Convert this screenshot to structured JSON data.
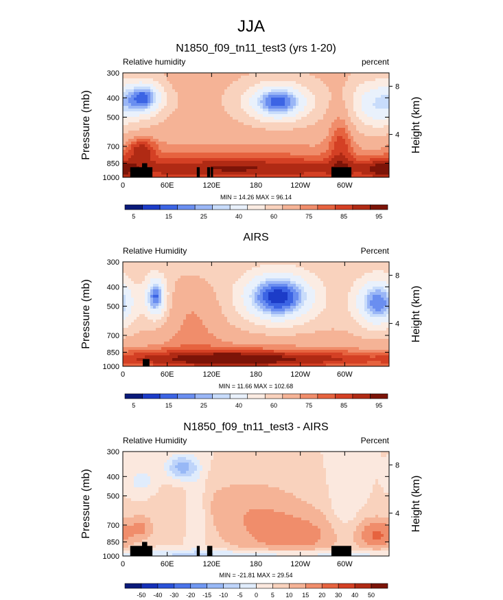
{
  "figure": {
    "title": "JJA"
  },
  "axes_common": {
    "xticks": [
      "0",
      "60E",
      "120E",
      "180",
      "120W",
      "60W"
    ],
    "xtick_lon": [
      0,
      60,
      120,
      180,
      240,
      300
    ],
    "x_range": [
      0,
      360
    ],
    "yticks": [
      "300",
      "400",
      "500",
      "700",
      "850",
      "1000"
    ],
    "ytick_values": [
      300,
      400,
      500,
      700,
      850,
      1000
    ],
    "y_range": [
      1000,
      300
    ],
    "right_ticks": [
      "8",
      "4"
    ],
    "right_tick_pressure": [
      350,
      610
    ],
    "ylabel": "Pressure (mb)",
    "ylabel_right": "Height (km)"
  },
  "colors": {
    "full": [
      "#0a1a7a",
      "#1c3cc8",
      "#3c64e4",
      "#6a8ef0",
      "#9ab6f6",
      "#c8dcfb",
      "#e9f1fc",
      "#fbece3",
      "#f9d2bd",
      "#f5b396",
      "#f08d6b",
      "#e6633f",
      "#d44024",
      "#b02a14",
      "#7c1408"
    ],
    "diff": [
      "#0a1a7a",
      "#1530b8",
      "#2a52d8",
      "#4a74ea",
      "#7098f2",
      "#98b8f6",
      "#bed4fa",
      "#e0ecfc",
      "#fbe8de",
      "#f9d2bd",
      "#f5b396",
      "#f08d6b",
      "#e6633f",
      "#d44024",
      "#b02a14",
      "#7c1408"
    ]
  },
  "chart_data": [
    {
      "type": "heatmap",
      "title": "N1850_f09_tn11_test3 (yrs 1-20)",
      "label_left": "Relative humidity",
      "label_right": "percent",
      "stats": "MIN = 14.26  MAX = 96.14",
      "palette": "full",
      "colorbar_ticks": [
        "5",
        "15",
        "25",
        "40",
        "60",
        "75",
        "85",
        "95"
      ],
      "colorbar_positions": [
        0.5,
        2.5,
        4.5,
        6.5,
        8.5,
        10.5,
        12.5,
        14.5
      ],
      "colorbar_count": 15,
      "levels": [
        5,
        10,
        15,
        20,
        25,
        30,
        40,
        50,
        60,
        70,
        75,
        80,
        85,
        90,
        95
      ],
      "base": 62,
      "features": [
        {
          "lon": 150,
          "p": 920,
          "wlon": 200,
          "wp": 60,
          "amp": 22
        },
        {
          "lon": 150,
          "p": 770,
          "wlon": 220,
          "wp": 110,
          "amp": 10
        },
        {
          "lon": 210,
          "p": 420,
          "wlon": 30,
          "wp": 90,
          "amp": -50
        },
        {
          "lon": 30,
          "p": 400,
          "wlon": 18,
          "wp": 80,
          "amp": -42
        },
        {
          "lon": 345,
          "p": 430,
          "wlon": 28,
          "wp": 120,
          "amp": -32
        },
        {
          "lon": 95,
          "p": 330,
          "wlon": 18,
          "wp": 40,
          "amp": 8
        },
        {
          "lon": 295,
          "p": 620,
          "wlon": 12,
          "wp": 200,
          "amp": 15
        },
        {
          "lon": 25,
          "p": 720,
          "wlon": 14,
          "wp": 60,
          "amp": 18
        },
        {
          "lon": 350,
          "p": 920,
          "wlon": 20,
          "wp": 60,
          "amp": 12
        }
      ],
      "land_blocks": [
        {
          "lon0": 10,
          "lon1": 40,
          "p0": 890
        },
        {
          "lon0": 26,
          "lon1": 33,
          "p0": 850
        },
        {
          "lon0": 100,
          "lon1": 104,
          "p0": 890
        },
        {
          "lon0": 114,
          "lon1": 118,
          "p0": 890
        },
        {
          "lon0": 119,
          "lon1": 122,
          "p0": 890
        },
        {
          "lon0": 282,
          "lon1": 309,
          "p0": 890
        }
      ]
    },
    {
      "type": "heatmap",
      "title": "AIRS",
      "label_left": "Relative Humidity",
      "label_right": "Percent",
      "stats": "MIN = 11.66  MAX = 102.68",
      "palette": "full",
      "colorbar_ticks": [
        "5",
        "15",
        "25",
        "40",
        "60",
        "75",
        "85",
        "95"
      ],
      "colorbar_positions": [
        0.5,
        2.5,
        4.5,
        6.5,
        8.5,
        10.5,
        12.5,
        14.5
      ],
      "colorbar_count": 15,
      "levels": [
        5,
        10,
        15,
        20,
        25,
        30,
        40,
        50,
        60,
        70,
        75,
        80,
        85,
        90,
        95
      ],
      "base": 58,
      "features": [
        {
          "lon": 160,
          "p": 930,
          "wlon": 200,
          "wp": 50,
          "amp": 28
        },
        {
          "lon": 150,
          "p": 800,
          "wlon": 200,
          "wp": 90,
          "amp": 10
        },
        {
          "lon": 210,
          "p": 450,
          "wlon": 34,
          "wp": 120,
          "amp": -52
        },
        {
          "lon": 45,
          "p": 450,
          "wlon": 10,
          "wp": 100,
          "amp": -45
        },
        {
          "lon": 345,
          "p": 480,
          "wlon": 22,
          "wp": 120,
          "amp": -42
        },
        {
          "lon": 95,
          "p": 560,
          "wlon": 30,
          "wp": 150,
          "amp": 12
        },
        {
          "lon": 150,
          "p": 930,
          "wlon": 30,
          "wp": 30,
          "amp": 10
        }
      ],
      "land_blocks": [
        {
          "lon0": 27,
          "lon1": 36,
          "p0": 920
        }
      ]
    },
    {
      "type": "heatmap",
      "title": "N1850_f09_tn11_test3 - AIRS",
      "label_left": "Relative Humidity",
      "label_right": "Percent",
      "stats": "MIN = -21.81  MAX = 29.54",
      "palette": "diff",
      "colorbar_ticks": [
        "-50",
        "-40",
        "-30",
        "-20",
        "-15",
        "-10",
        "-5",
        "0",
        "5",
        "10",
        "15",
        "20",
        "30",
        "40",
        "50"
      ],
      "colorbar_positions": [
        1,
        2,
        3,
        4,
        5,
        6,
        7,
        8,
        9,
        10,
        11,
        12,
        13,
        14,
        15
      ],
      "colorbar_count": 16,
      "levels": [
        -50,
        -40,
        -30,
        -20,
        -15,
        -10,
        -5,
        0,
        5,
        10,
        15,
        20,
        30,
        40,
        50
      ],
      "base": 5,
      "features": [
        {
          "lon": 230,
          "p": 800,
          "wlon": 60,
          "wp": 120,
          "amp": 12
        },
        {
          "lon": 170,
          "p": 550,
          "wlon": 60,
          "wp": 140,
          "amp": 8
        },
        {
          "lon": 345,
          "p": 780,
          "wlon": 20,
          "wp": 80,
          "amp": 14
        },
        {
          "lon": 80,
          "p": 360,
          "wlon": 15,
          "wp": 60,
          "amp": -18
        },
        {
          "lon": 25,
          "p": 420,
          "wlon": 12,
          "wp": 60,
          "amp": -8
        },
        {
          "lon": 180,
          "p": 985,
          "wlon": 200,
          "wp": 25,
          "amp": -12
        },
        {
          "lon": 100,
          "p": 600,
          "wlon": 10,
          "wp": 200,
          "amp": -8
        },
        {
          "lon": 300,
          "p": 600,
          "wlon": 15,
          "wp": 200,
          "amp": -6
        },
        {
          "lon": 25,
          "p": 720,
          "wlon": 12,
          "wp": 60,
          "amp": 10
        }
      ],
      "land_blocks": [
        {
          "lon0": 10,
          "lon1": 40,
          "p0": 890
        },
        {
          "lon0": 26,
          "lon1": 33,
          "p0": 850
        },
        {
          "lon0": 100,
          "lon1": 104,
          "p0": 890
        },
        {
          "lon0": 114,
          "lon1": 121,
          "p0": 890
        },
        {
          "lon0": 282,
          "lon1": 309,
          "p0": 890
        }
      ]
    }
  ]
}
